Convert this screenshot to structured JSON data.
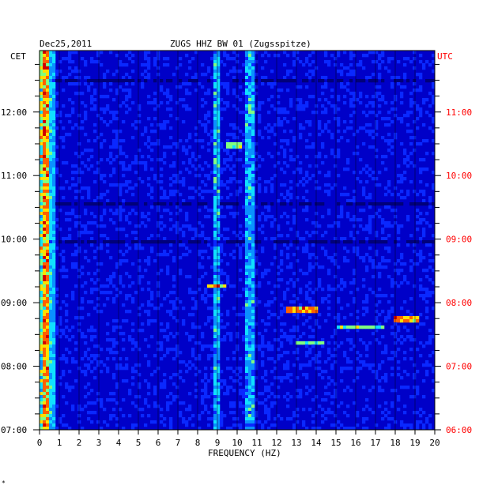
{
  "chart_data": {
    "type": "heatmap",
    "date": "Dec25,2011",
    "title": "ZUGS HHZ BW 01 (Zugsspitze)",
    "xlabel": "FREQUENCY (HZ)",
    "left_timezone": "CET",
    "right_timezone": "UTC",
    "x_ticks": [
      "0",
      "1",
      "2",
      "3",
      "4",
      "5",
      "6",
      "7",
      "8",
      "9",
      "10",
      "11",
      "12",
      "13",
      "14",
      "15",
      "16",
      "17",
      "18",
      "19",
      "20"
    ],
    "xlim": [
      0,
      20
    ],
    "cet_ticks": [
      "07:00",
      "08:00",
      "09:00",
      "10:00",
      "11:00",
      "12:00"
    ],
    "utc_ticks": [
      "06:00",
      "07:00",
      "08:00",
      "09:00",
      "10:00",
      "11:00"
    ],
    "time_range_cet": [
      "07:00",
      "12:58"
    ],
    "grid": true,
    "colormap": [
      "#00007a",
      "#0000c8",
      "#0a28ff",
      "#0a90ff",
      "#10e0ff",
      "#80ff80",
      "#ffe000",
      "#ff6000",
      "#d00000"
    ],
    "persistent_lines_hz": [
      0.3,
      9.0,
      10.6,
      10.8
    ],
    "events": [
      {
        "time_cet": "08:54",
        "freq_hz": [
          12.5,
          14.0
        ],
        "level": "high"
      },
      {
        "time_cet": "08:44",
        "freq_hz": [
          18.0,
          19.2
        ],
        "level": "high"
      },
      {
        "time_cet": "08:37",
        "freq_hz": [
          15.0,
          17.5
        ],
        "level": "medium"
      },
      {
        "time_cet": "08:22",
        "freq_hz": [
          13.0,
          14.4
        ],
        "level": "medium"
      },
      {
        "time_cet": "09:15",
        "freq_hz": [
          8.5,
          9.5
        ],
        "level": "medium"
      },
      {
        "time_cet": "11:28",
        "freq_hz": [
          9.5,
          10.2
        ],
        "level": "medium"
      }
    ],
    "footer_mark": "*"
  },
  "accent_colors": {
    "utc": "#ff0000",
    "text": "#000000"
  }
}
